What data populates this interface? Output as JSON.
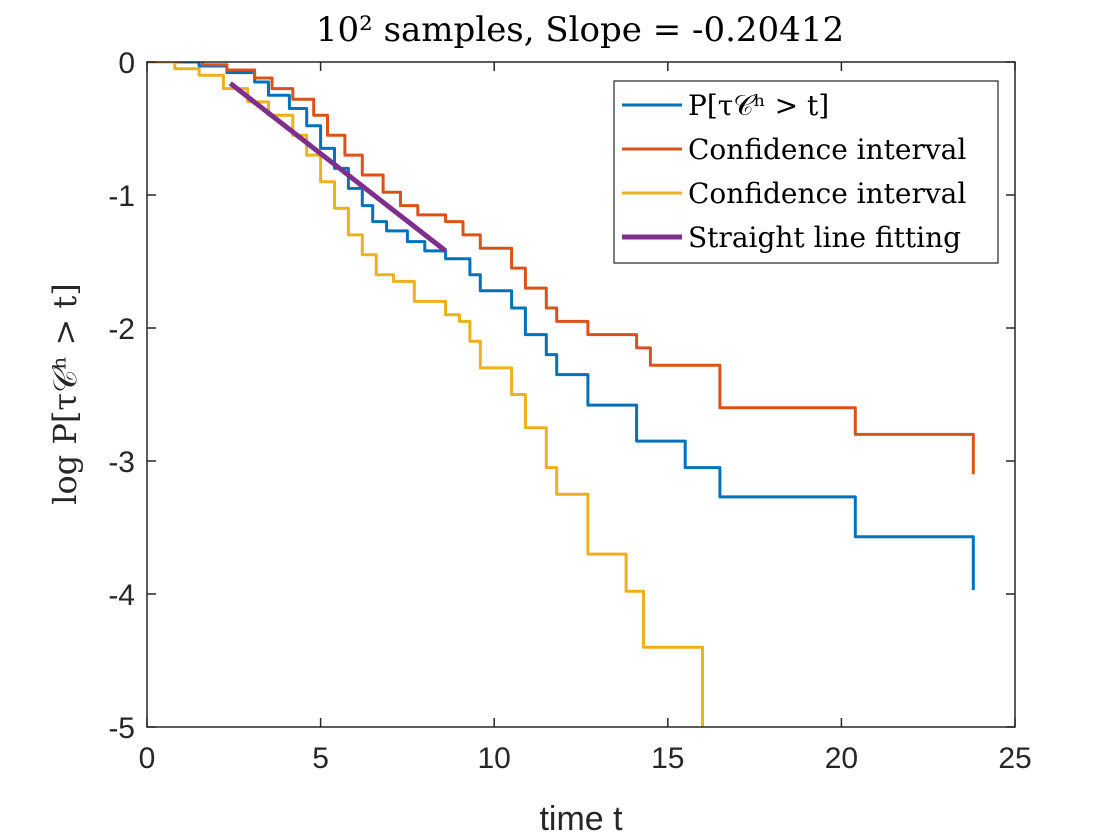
{
  "chart_data": {
    "type": "line",
    "title": "10² samples, Slope = -0.20412",
    "xlabel": "time t",
    "ylabel": "log P[τ𝒞ʰ > t]",
    "xlim": [
      0,
      25
    ],
    "ylim": [
      -5,
      0
    ],
    "xticks": [
      "0",
      "5",
      "10",
      "15",
      "20",
      "25"
    ],
    "yticks": [
      "0",
      "-1",
      "-2",
      "-3",
      "-4",
      "-5"
    ],
    "grid": false,
    "legend_position": "top-right",
    "series": [
      {
        "name": "P[τ𝒞ʰ > t]",
        "color": "#0072BD",
        "style": "step",
        "points": [
          [
            0,
            0
          ],
          [
            1.5,
            0
          ],
          [
            1.5,
            -0.03
          ],
          [
            2.3,
            -0.03
          ],
          [
            2.3,
            -0.08
          ],
          [
            3.1,
            -0.08
          ],
          [
            3.1,
            -0.15
          ],
          [
            3.5,
            -0.15
          ],
          [
            3.5,
            -0.25
          ],
          [
            4.1,
            -0.25
          ],
          [
            4.1,
            -0.35
          ],
          [
            4.6,
            -0.35
          ],
          [
            4.6,
            -0.48
          ],
          [
            5.0,
            -0.48
          ],
          [
            5.0,
            -0.65
          ],
          [
            5.4,
            -0.65
          ],
          [
            5.4,
            -0.8
          ],
          [
            5.8,
            -0.8
          ],
          [
            5.8,
            -0.95
          ],
          [
            6.2,
            -0.95
          ],
          [
            6.2,
            -1.08
          ],
          [
            6.5,
            -1.08
          ],
          [
            6.5,
            -1.2
          ],
          [
            6.9,
            -1.2
          ],
          [
            6.9,
            -1.27
          ],
          [
            7.5,
            -1.27
          ],
          [
            7.5,
            -1.35
          ],
          [
            8.0,
            -1.35
          ],
          [
            8.0,
            -1.42
          ],
          [
            8.6,
            -1.42
          ],
          [
            8.6,
            -1.48
          ],
          [
            9.3,
            -1.48
          ],
          [
            9.3,
            -1.6
          ],
          [
            9.6,
            -1.6
          ],
          [
            9.6,
            -1.72
          ],
          [
            10.5,
            -1.72
          ],
          [
            10.5,
            -1.85
          ],
          [
            10.9,
            -1.85
          ],
          [
            10.9,
            -2.05
          ],
          [
            11.5,
            -2.05
          ],
          [
            11.5,
            -2.2
          ],
          [
            11.8,
            -2.2
          ],
          [
            11.8,
            -2.35
          ],
          [
            12.7,
            -2.35
          ],
          [
            12.7,
            -2.58
          ],
          [
            14.1,
            -2.58
          ],
          [
            14.1,
            -2.85
          ],
          [
            15.5,
            -2.85
          ],
          [
            15.5,
            -3.05
          ],
          [
            16.5,
            -3.05
          ],
          [
            16.5,
            -3.27
          ],
          [
            20.4,
            -3.27
          ],
          [
            20.4,
            -3.57
          ],
          [
            23.8,
            -3.57
          ],
          [
            23.8,
            -3.97
          ]
        ]
      },
      {
        "name": "Confidence interval",
        "color": "#D95319",
        "style": "step",
        "points": [
          [
            0,
            0
          ],
          [
            1.0,
            0
          ],
          [
            1.0,
            0.02
          ],
          [
            1.6,
            0.02
          ],
          [
            1.6,
            -0.02
          ],
          [
            2.3,
            -0.02
          ],
          [
            2.3,
            -0.06
          ],
          [
            3.1,
            -0.06
          ],
          [
            3.1,
            -0.12
          ],
          [
            3.6,
            -0.12
          ],
          [
            3.6,
            -0.2
          ],
          [
            4.2,
            -0.2
          ],
          [
            4.2,
            -0.28
          ],
          [
            4.8,
            -0.28
          ],
          [
            4.8,
            -0.4
          ],
          [
            5.2,
            -0.4
          ],
          [
            5.2,
            -0.55
          ],
          [
            5.7,
            -0.55
          ],
          [
            5.7,
            -0.7
          ],
          [
            6.2,
            -0.7
          ],
          [
            6.2,
            -0.85
          ],
          [
            6.8,
            -0.85
          ],
          [
            6.8,
            -0.98
          ],
          [
            7.3,
            -0.98
          ],
          [
            7.3,
            -1.08
          ],
          [
            7.8,
            -1.08
          ],
          [
            7.8,
            -1.15
          ],
          [
            8.6,
            -1.15
          ],
          [
            8.6,
            -1.2
          ],
          [
            9.1,
            -1.2
          ],
          [
            9.1,
            -1.3
          ],
          [
            9.6,
            -1.3
          ],
          [
            9.6,
            -1.4
          ],
          [
            10.5,
            -1.4
          ],
          [
            10.5,
            -1.55
          ],
          [
            10.9,
            -1.55
          ],
          [
            10.9,
            -1.7
          ],
          [
            11.5,
            -1.7
          ],
          [
            11.5,
            -1.85
          ],
          [
            11.8,
            -1.85
          ],
          [
            11.8,
            -1.95
          ],
          [
            12.7,
            -1.95
          ],
          [
            12.7,
            -2.05
          ],
          [
            14.1,
            -2.05
          ],
          [
            14.1,
            -2.15
          ],
          [
            14.5,
            -2.15
          ],
          [
            14.5,
            -2.28
          ],
          [
            16.5,
            -2.28
          ],
          [
            16.5,
            -2.6
          ],
          [
            20.4,
            -2.6
          ],
          [
            20.4,
            -2.8
          ],
          [
            23.8,
            -2.8
          ],
          [
            23.8,
            -3.1
          ]
        ]
      },
      {
        "name": "Confidence interval",
        "color": "#EDB120",
        "style": "step",
        "points": [
          [
            0,
            0
          ],
          [
            0.8,
            0
          ],
          [
            0.8,
            -0.05
          ],
          [
            1.5,
            -0.05
          ],
          [
            1.5,
            -0.1
          ],
          [
            2.2,
            -0.1
          ],
          [
            2.2,
            -0.2
          ],
          [
            2.9,
            -0.2
          ],
          [
            2.9,
            -0.3
          ],
          [
            3.5,
            -0.3
          ],
          [
            3.5,
            -0.4
          ],
          [
            4.2,
            -0.4
          ],
          [
            4.2,
            -0.55
          ],
          [
            4.6,
            -0.55
          ],
          [
            4.6,
            -0.7
          ],
          [
            5.0,
            -0.7
          ],
          [
            5.0,
            -0.9
          ],
          [
            5.4,
            -0.9
          ],
          [
            5.4,
            -1.1
          ],
          [
            5.8,
            -1.1
          ],
          [
            5.8,
            -1.3
          ],
          [
            6.2,
            -1.3
          ],
          [
            6.2,
            -1.45
          ],
          [
            6.6,
            -1.45
          ],
          [
            6.6,
            -1.6
          ],
          [
            7.1,
            -1.6
          ],
          [
            7.1,
            -1.65
          ],
          [
            7.7,
            -1.65
          ],
          [
            7.7,
            -1.8
          ],
          [
            8.6,
            -1.8
          ],
          [
            8.6,
            -1.9
          ],
          [
            9.0,
            -1.9
          ],
          [
            9.0,
            -1.95
          ],
          [
            9.3,
            -1.95
          ],
          [
            9.3,
            -2.1
          ],
          [
            9.6,
            -2.1
          ],
          [
            9.6,
            -2.3
          ],
          [
            10.5,
            -2.3
          ],
          [
            10.5,
            -2.5
          ],
          [
            10.9,
            -2.5
          ],
          [
            10.9,
            -2.75
          ],
          [
            11.5,
            -2.75
          ],
          [
            11.5,
            -3.05
          ],
          [
            11.8,
            -3.05
          ],
          [
            11.8,
            -3.25
          ],
          [
            12.7,
            -3.25
          ],
          [
            12.7,
            -3.7
          ],
          [
            13.8,
            -3.7
          ],
          [
            13.8,
            -3.98
          ],
          [
            14.3,
            -3.98
          ],
          [
            14.3,
            -4.4
          ],
          [
            16.0,
            -4.4
          ],
          [
            16.0,
            -5.0
          ]
        ]
      },
      {
        "name": "Straight line fitting",
        "color": "#7E2F8E",
        "style": "line",
        "points": [
          [
            2.4,
            -0.16
          ],
          [
            8.6,
            -1.42
          ]
        ]
      }
    ]
  }
}
